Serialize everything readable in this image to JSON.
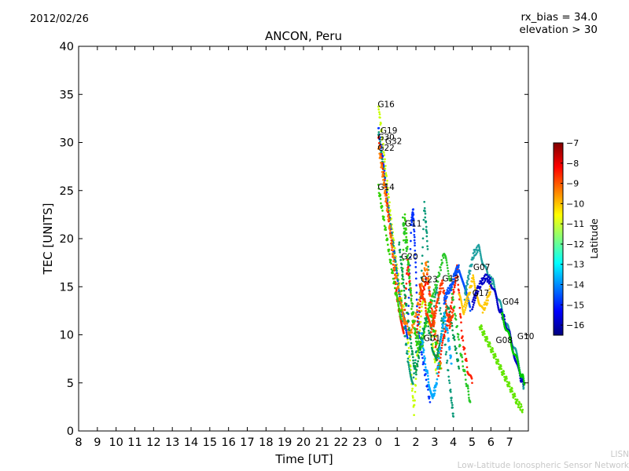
{
  "header": {
    "date": "2012/02/26",
    "rx_bias": "rx_bias = 34.0",
    "elevation": "elevation > 30"
  },
  "footer": {
    "short": "LISN",
    "long": "Low-Latitude Ionospheric Sensor Network"
  },
  "chart_data": {
    "type": "scatter",
    "title": "ANCON, Peru",
    "xlabel": "Time [UT]",
    "ylabel": "TEC [UNITS]",
    "x_ticks": [
      "8",
      "9",
      "10",
      "11",
      "12",
      "13",
      "14",
      "15",
      "16",
      "17",
      "18",
      "19",
      "20",
      "21",
      "22",
      "23",
      "0",
      "1",
      "2",
      "3",
      "4",
      "5",
      "6",
      "7"
    ],
    "xlim_hours_ut": [
      "08:00 (Feb 25)",
      "08:00 (Feb 26)"
    ],
    "ylim": [
      0,
      40
    ],
    "y_ticks": [
      0,
      5,
      10,
      15,
      20,
      25,
      30,
      35,
      40
    ],
    "grid": false,
    "colorbar": {
      "label": "Latitude",
      "range": [
        -16.5,
        -7
      ],
      "ticks": [
        -7,
        -8,
        -9,
        -10,
        -11,
        -12,
        -13,
        -14,
        -15,
        -16
      ],
      "colormap": "jet",
      "colors": [
        "#00007f",
        "#0000ff",
        "#007fff",
        "#00ffff",
        "#7fff7f",
        "#ffff00",
        "#ff7f00",
        "#ff0000",
        "#7f0000"
      ]
    },
    "series": [
      {
        "name": "G16",
        "color": "#c8ff00",
        "points": [
          [
            0.0,
            33.9
          ],
          [
            0.2,
            30.5
          ],
          [
            0.45,
            26.0
          ],
          [
            0.7,
            21.5
          ],
          [
            0.95,
            17.5
          ],
          [
            1.2,
            14.0
          ],
          [
            1.45,
            11.5
          ],
          [
            1.7,
            7.0
          ],
          [
            1.9,
            2.0
          ],
          [
            2.1,
            9.0
          ],
          [
            2.4,
            14.0
          ],
          [
            2.8,
            10.5
          ],
          [
            3.1,
            6.0
          ]
        ]
      },
      {
        "name": "G19",
        "color": "#0030ff",
        "points": [
          [
            0.0,
            31.4
          ],
          [
            0.25,
            28.0
          ],
          [
            0.5,
            23.5
          ],
          [
            0.8,
            19.0
          ],
          [
            1.05,
            15.0
          ],
          [
            1.3,
            12.0
          ],
          [
            1.55,
            10.0
          ],
          [
            1.75,
            21.5
          ],
          [
            1.85,
            23.0
          ],
          [
            1.95,
            19.0
          ],
          [
            2.1,
            11.0
          ],
          [
            2.4,
            7.0
          ],
          [
            2.75,
            3.0
          ]
        ]
      },
      {
        "name": "G30",
        "color": "#0a9a7a",
        "points": [
          [
            0.0,
            31.0
          ],
          [
            0.25,
            27.5
          ],
          [
            0.55,
            22.5
          ],
          [
            0.85,
            18.5
          ],
          [
            1.1,
            14.5
          ],
          [
            1.35,
            11.0
          ],
          [
            1.6,
            7.0
          ],
          [
            1.85,
            5.0
          ],
          [
            2.2,
            12.0
          ],
          [
            2.45,
            23.5
          ],
          [
            2.6,
            20.0
          ],
          [
            2.8,
            10.0
          ],
          [
            3.1,
            15.0
          ],
          [
            3.5,
            10.0
          ],
          [
            3.85,
            4.0
          ],
          [
            4.0,
            1.5
          ]
        ]
      },
      {
        "name": "G32",
        "color": "#ff2000",
        "points": [
          [
            0.0,
            30.5
          ],
          [
            0.25,
            27.0
          ],
          [
            0.5,
            23.0
          ],
          [
            0.75,
            18.5
          ],
          [
            0.95,
            14.5
          ],
          [
            1.15,
            12.0
          ],
          [
            1.35,
            10.5
          ],
          [
            1.55,
            17.5
          ],
          [
            1.75,
            14.0
          ],
          [
            2.0,
            10.0
          ],
          [
            2.3,
            14.0
          ],
          [
            2.6,
            16.0
          ],
          [
            2.9,
            12.0
          ],
          [
            3.2,
            6.0
          ],
          [
            3.5,
            10.0
          ],
          [
            3.8,
            12.0
          ],
          [
            4.05,
            15.0
          ],
          [
            4.2,
            17.0
          ],
          [
            4.45,
            10.0
          ],
          [
            4.75,
            6.5
          ],
          [
            5.0,
            5.0
          ]
        ]
      },
      {
        "name": "G22",
        "color": "#ff8000",
        "points": [
          [
            0.0,
            29.7
          ],
          [
            0.2,
            27.0
          ],
          [
            0.4,
            24.0
          ],
          [
            0.65,
            20.5
          ],
          [
            0.9,
            16.5
          ],
          [
            1.15,
            13.5
          ],
          [
            1.4,
            11.5
          ],
          [
            1.7,
            10.0
          ],
          [
            2.0,
            12.0
          ],
          [
            2.3,
            15.0
          ],
          [
            2.55,
            17.5
          ],
          [
            2.8,
            13.5
          ],
          [
            3.1,
            9.5
          ],
          [
            3.35,
            6.5
          ]
        ]
      },
      {
        "name": "G14",
        "color": "#32d200",
        "points": [
          [
            0.0,
            25.3
          ],
          [
            0.2,
            23.0
          ],
          [
            0.45,
            20.0
          ],
          [
            0.7,
            17.0
          ],
          [
            0.95,
            14.0
          ],
          [
            1.2,
            12.0
          ],
          [
            1.4,
            22.5
          ],
          [
            1.55,
            19.0
          ],
          [
            1.8,
            12.0
          ],
          [
            2.1,
            8.5
          ],
          [
            2.4,
            10.0
          ],
          [
            2.7,
            13.0
          ],
          [
            3.0,
            10.0
          ],
          [
            3.3,
            6.5
          ]
        ]
      },
      {
        "name": "G11",
        "color": "#28c828",
        "points": [
          [
            1.3,
            22.0
          ],
          [
            1.5,
            19.0
          ],
          [
            1.75,
            14.0
          ],
          [
            2.0,
            10.0
          ],
          [
            2.3,
            8.5
          ],
          [
            2.6,
            12.0
          ],
          [
            2.9,
            14.0
          ],
          [
            3.2,
            16.0
          ],
          [
            3.5,
            18.5
          ],
          [
            3.8,
            16.0
          ],
          [
            4.1,
            12.0
          ],
          [
            4.4,
            8.0
          ],
          [
            4.7,
            5.0
          ],
          [
            4.9,
            3.0
          ]
        ]
      },
      {
        "name": "G20",
        "color": "#009a50",
        "points": [
          [
            1.1,
            19.5
          ],
          [
            1.3,
            16.0
          ],
          [
            1.55,
            12.0
          ],
          [
            1.8,
            8.0
          ],
          [
            2.0,
            6.0
          ],
          [
            2.25,
            9.0
          ],
          [
            2.55,
            12.0
          ],
          [
            2.85,
            9.0
          ],
          [
            3.1,
            7.0
          ],
          [
            3.4,
            11.0
          ],
          [
            3.7,
            13.0
          ],
          [
            4.0,
            10.0
          ],
          [
            4.3,
            6.5
          ]
        ]
      },
      {
        "name": "G23",
        "color": "#ff3c00",
        "points": [
          [
            2.2,
            15.5
          ],
          [
            2.4,
            14.0
          ],
          [
            2.6,
            12.0
          ],
          [
            2.8,
            10.5
          ],
          [
            3.0,
            12.0
          ],
          [
            3.2,
            14.0
          ],
          [
            3.4,
            15.5
          ],
          [
            3.6,
            13.0
          ],
          [
            3.8,
            11.0
          ],
          [
            4.0,
            12.5
          ]
        ]
      },
      {
        "name": "G13",
        "color": "#0050ff",
        "points": [
          [
            3.5,
            13.5
          ],
          [
            3.7,
            14.5
          ],
          [
            3.9,
            15.0
          ],
          [
            4.1,
            16.5
          ],
          [
            4.3,
            17.0
          ],
          [
            4.5,
            15.5
          ],
          [
            4.7,
            14.0
          ],
          [
            4.9,
            12.5
          ]
        ]
      },
      {
        "name": "G07",
        "color": "#1ea0a0",
        "points": [
          [
            4.6,
            14.0
          ],
          [
            4.85,
            16.5
          ],
          [
            5.1,
            18.5
          ],
          [
            5.35,
            19.0
          ],
          [
            5.6,
            17.5
          ],
          [
            5.85,
            16.0
          ],
          [
            6.1,
            15.5
          ],
          [
            6.35,
            14.0
          ],
          [
            6.6,
            12.5
          ],
          [
            6.85,
            11.0
          ],
          [
            7.1,
            9.5
          ],
          [
            7.35,
            8.0
          ],
          [
            7.6,
            6.0
          ],
          [
            7.75,
            4.5
          ]
        ]
      },
      {
        "name": "G17",
        "color": "#ffc800",
        "points": [
          [
            4.3,
            14.0
          ],
          [
            4.55,
            12.5
          ],
          [
            4.8,
            14.0
          ],
          [
            5.05,
            16.0
          ],
          [
            5.3,
            14.0
          ],
          [
            5.55,
            12.5
          ],
          [
            5.8,
            13.5
          ],
          [
            6.0,
            15.0
          ]
        ]
      },
      {
        "name": "G04",
        "color": "#0000c8",
        "points": [
          [
            5.0,
            13.0
          ],
          [
            5.25,
            14.5
          ],
          [
            5.5,
            15.5
          ],
          [
            5.75,
            16.0
          ],
          [
            6.0,
            15.5
          ],
          [
            6.25,
            14.0
          ],
          [
            6.5,
            12.5
          ],
          [
            6.75,
            11.5
          ],
          [
            7.0,
            10.0
          ],
          [
            7.25,
            8.0
          ],
          [
            7.5,
            6.0
          ],
          [
            7.75,
            4.8
          ]
        ]
      },
      {
        "name": "G01",
        "color": "#00aaff",
        "points": [
          [
            2.3,
            10.0
          ],
          [
            2.5,
            7.0
          ],
          [
            2.7,
            5.0
          ],
          [
            2.9,
            3.5
          ],
          [
            3.1,
            5.0
          ],
          [
            3.3,
            9.0
          ],
          [
            3.5,
            12.0
          ],
          [
            3.7,
            10.0
          ],
          [
            3.9,
            7.0
          ]
        ]
      },
      {
        "name": "G08",
        "color": "#64e600",
        "points": [
          [
            5.4,
            11.0
          ],
          [
            5.65,
            10.0
          ],
          [
            5.9,
            9.0
          ],
          [
            6.15,
            8.0
          ],
          [
            6.4,
            7.0
          ],
          [
            6.65,
            6.0
          ],
          [
            6.9,
            5.0
          ],
          [
            7.15,
            4.0
          ],
          [
            7.4,
            3.0
          ],
          [
            7.7,
            2.2
          ]
        ]
      },
      {
        "name": "G10",
        "color": "#00c800",
        "points": [
          [
            6.6,
            12.0
          ],
          [
            6.85,
            10.5
          ],
          [
            7.1,
            9.0
          ],
          [
            7.35,
            7.5
          ],
          [
            7.6,
            6.0
          ],
          [
            7.8,
            5.0
          ]
        ]
      }
    ],
    "annotations": [
      {
        "text": "G16",
        "x": 0.0,
        "y": 33.9
      },
      {
        "text": "G19",
        "x": 0.15,
        "y": 31.2
      },
      {
        "text": "G30",
        "x": 0.0,
        "y": 30.5
      },
      {
        "text": "G32",
        "x": 0.4,
        "y": 30.1
      },
      {
        "text": "G22",
        "x": 0.0,
        "y": 29.4
      },
      {
        "text": "G14",
        "x": 0.0,
        "y": 25.3
      },
      {
        "text": "G11",
        "x": 1.45,
        "y": 21.5
      },
      {
        "text": "G20",
        "x": 1.25,
        "y": 18.1
      },
      {
        "text": "G23",
        "x": 2.3,
        "y": 15.7
      },
      {
        "text": "G13",
        "x": 3.45,
        "y": 15.8
      },
      {
        "text": "G07",
        "x": 5.1,
        "y": 17.0
      },
      {
        "text": "G17",
        "x": 5.05,
        "y": 14.3
      },
      {
        "text": "G04",
        "x": 6.65,
        "y": 13.4
      },
      {
        "text": "G01",
        "x": 2.45,
        "y": 9.6
      },
      {
        "text": "G08",
        "x": 6.3,
        "y": 9.4
      },
      {
        "text": "G10",
        "x": 7.45,
        "y": 9.8
      }
    ]
  }
}
